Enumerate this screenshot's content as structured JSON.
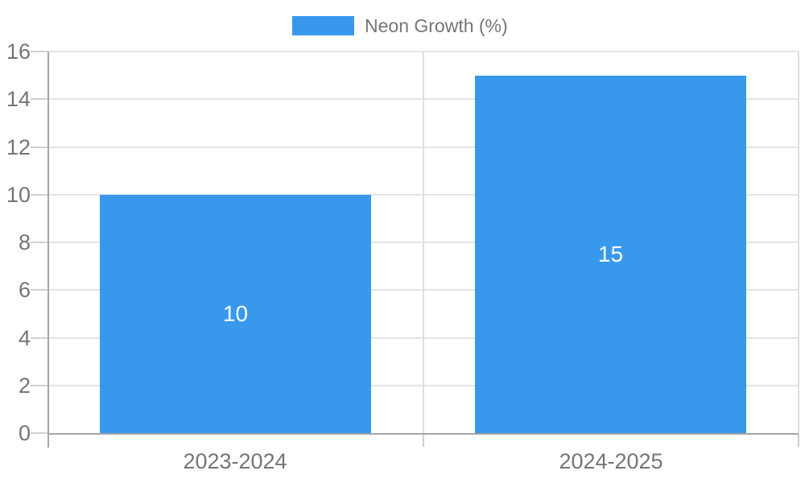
{
  "chart_data": {
    "type": "bar",
    "title": "",
    "categories": [
      "2023-2024",
      "2024-2025"
    ],
    "series": [
      {
        "name": "Neon Growth (%)",
        "values": [
          10,
          15
        ]
      }
    ],
    "data_labels": [
      "10",
      "15"
    ],
    "xlabel": "",
    "ylabel": "",
    "ylim": [
      0,
      16
    ],
    "yticks": [
      0,
      2,
      4,
      6,
      8,
      10,
      12,
      14,
      16
    ],
    "grid": "on",
    "legend_position": "top-center",
    "colors": {
      "bar": "#3899EC",
      "bar_label_text": "#ffffff",
      "axis_text": "#757575",
      "legend_text": "#757575",
      "axis_line": "#a6a6a6",
      "gridline": "#e4e4e4",
      "tick": "#d0d0d0",
      "background": "#ffffff"
    }
  }
}
